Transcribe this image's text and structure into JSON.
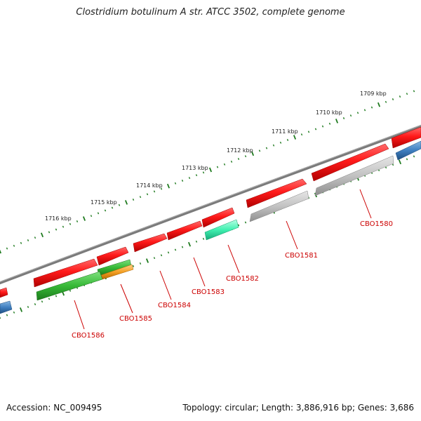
{
  "title": "Clostridium botulinum A str. ATCC 3502, complete genome",
  "footer": {
    "accession": "Accession: NC_009495",
    "summary": "Topology: circular; Length: 3,886,916 bp; Genes: 3,686"
  },
  "colors": {
    "backbone": "#808080",
    "forward_gene": "#ee1111",
    "reverse_grey": "#b8b8b8",
    "reverse_green": "#2fb52f",
    "reverse_cyan": "#33ddaa",
    "reverse_orange": "#f19a1a",
    "reverse_blue": "#3d7ab8",
    "tick": "#1e7a1e",
    "label": "#cc0000"
  },
  "scale": {
    "ticks": [
      {
        "label": "1709 kbp"
      },
      {
        "label": "1710 kbp"
      },
      {
        "label": "1711 kbp"
      },
      {
        "label": "1712 kbp"
      },
      {
        "label": "1713 kbp"
      },
      {
        "label": "1714 kbp"
      },
      {
        "label": "1715 kbp"
      },
      {
        "label": "1716 kbp"
      }
    ]
  },
  "genes": [
    {
      "label": "CBO1580"
    },
    {
      "label": "CBO1581"
    },
    {
      "label": "CBO1582"
    },
    {
      "label": "CBO1583"
    },
    {
      "label": "CBO1584"
    },
    {
      "label": "CBO1585"
    },
    {
      "label": "CBO1586"
    }
  ]
}
